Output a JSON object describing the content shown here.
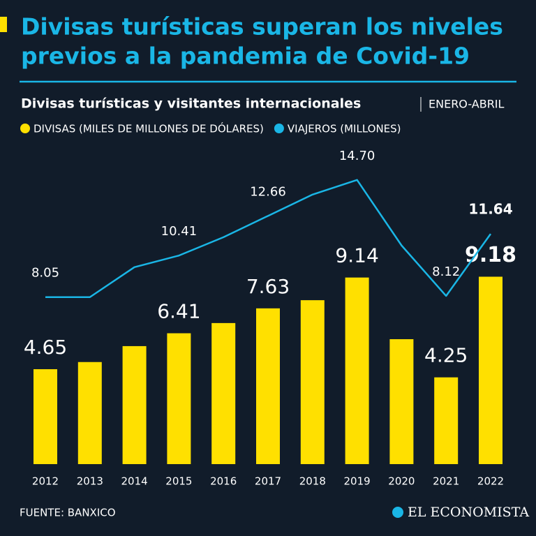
{
  "chart_data": {
    "type": "bar",
    "title": [
      "Divisas turísticas superan los niveles",
      "previos a la pandemia de Covid-19"
    ],
    "subtitle": "Divisas turísticas y visitantes internacionales",
    "period": "ENERO-ABRIL",
    "categories": [
      "2012",
      "2013",
      "2014",
      "2015",
      "2016",
      "2017",
      "2018",
      "2019",
      "2020",
      "2021",
      "2022"
    ],
    "series": [
      {
        "name": "DIVISAS (MILES DE MILLONES DE DÓLARES)",
        "color": "#ffe000",
        "type": "bar",
        "values": [
          4.65,
          5.0,
          5.78,
          6.41,
          6.91,
          7.63,
          8.03,
          9.14,
          6.12,
          4.25,
          9.18
        ],
        "value_labels": [
          "4.65",
          null,
          null,
          "6.41",
          null,
          "7.63",
          null,
          "9.14",
          null,
          "4.25",
          "9.18"
        ]
      },
      {
        "name": "VIAJEROS (MILLONES)",
        "color": "#1ab6e6",
        "type": "line",
        "axis": "y2",
        "values": [
          8.05,
          8.05,
          9.75,
          10.41,
          11.45,
          12.66,
          13.87,
          14.7,
          10.98,
          8.12,
          11.64
        ],
        "value_labels": [
          "8.05",
          null,
          null,
          "10.41",
          null,
          "12.66",
          null,
          "14.70",
          null,
          "8.12",
          "11.64"
        ]
      }
    ],
    "ylim": [
      0,
      10
    ],
    "y2lim": [
      0,
      20
    ],
    "source": "FUENTE: BANXICO",
    "brand": "EL ECONOMISTA"
  }
}
